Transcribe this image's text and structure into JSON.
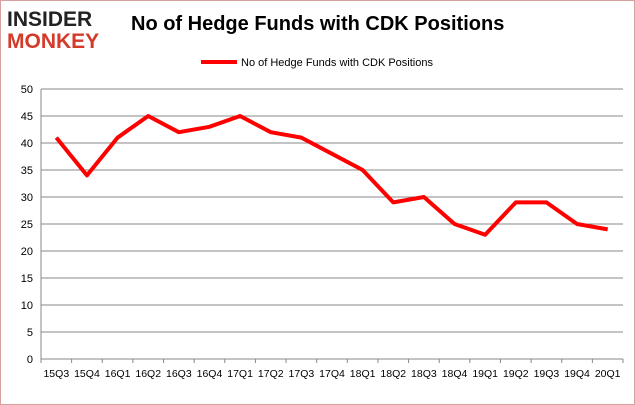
{
  "logo": {
    "line1": "INSIDER",
    "line2": "MONKEY"
  },
  "chart_data": {
    "type": "line",
    "title": "No of Hedge Funds with CDK Positions",
    "categories": [
      "15Q3",
      "15Q4",
      "16Q1",
      "16Q2",
      "16Q3",
      "16Q4",
      "17Q1",
      "17Q2",
      "17Q3",
      "17Q4",
      "18Q1",
      "18Q2",
      "18Q3",
      "18Q4",
      "19Q1",
      "19Q2",
      "19Q3",
      "19Q4",
      "20Q1"
    ],
    "series": [
      {
        "name": "No of Hedge Funds with CDK Positions",
        "color": "#ff0000",
        "values": [
          41,
          34,
          41,
          45,
          42,
          43,
          45,
          42,
          41,
          38,
          35,
          29,
          30,
          25,
          23,
          29,
          29,
          25,
          24
        ]
      }
    ],
    "ylim": [
      0,
      50
    ],
    "yticks": [
      0,
      5,
      10,
      15,
      20,
      25,
      30,
      35,
      40,
      45,
      50
    ],
    "grid": true,
    "legend": "top"
  }
}
